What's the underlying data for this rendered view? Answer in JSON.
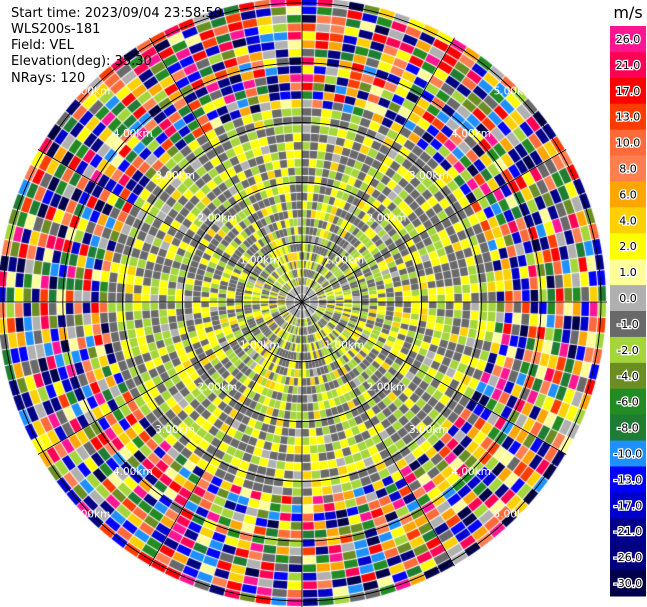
{
  "header": {
    "start_time": "Start time: 2023/09/04 23:58:59",
    "instrument": "WLS200s-181",
    "field": "Field: VEL",
    "elevation": "Elevation(deg): 35.30",
    "nrays": "NRays: 120"
  },
  "chart_data": {
    "type": "heatmap",
    "projection": "polar-ppi",
    "field": "VEL",
    "units": "m/s",
    "n_rays": 120,
    "range_rings_km": [
      1.0,
      2.0,
      3.0,
      4.0,
      5.0
    ],
    "ring_labels": [
      "1.00km",
      "2.00km",
      "3.00km",
      "4.00km",
      "5.00km"
    ],
    "max_range_km": 5.1,
    "range_gates": 36,
    "spoke_angles_deg": [
      0,
      30,
      60,
      90,
      120,
      150,
      180,
      210,
      240,
      270,
      300,
      330
    ],
    "approx_noise_start_km": 3.25,
    "approx_weak_echo_mean_ms": 0.0,
    "colorbar": {
      "label": "m/s",
      "ticks": [
        "26.0",
        "21.0",
        "17.0",
        "13.0",
        "10.0",
        "8.0",
        "6.0",
        "4.0",
        "2.0",
        "1.0",
        "0.0",
        "-1.0",
        "-2.0",
        "-4.0",
        "-6.0",
        "-8.0",
        "-10.0",
        "-13.0",
        "-17.0",
        "-21.0",
        "-26.0",
        "-30.0"
      ],
      "colors": [
        "#ff1493",
        "#ff0055",
        "#ff0000",
        "#ff3c00",
        "#ff6a3a",
        "#ff7f50",
        "#ffa500",
        "#ffd000",
        "#ffff00",
        "#ffff99",
        "#b0b0b0",
        "#696969",
        "#a4d63a",
        "#6b8e23",
        "#228b22",
        "#1e7d32",
        "#1e90ff",
        "#0000ff",
        "#0000cd",
        "#00008b",
        "#000080",
        "#00004a"
      ]
    }
  }
}
